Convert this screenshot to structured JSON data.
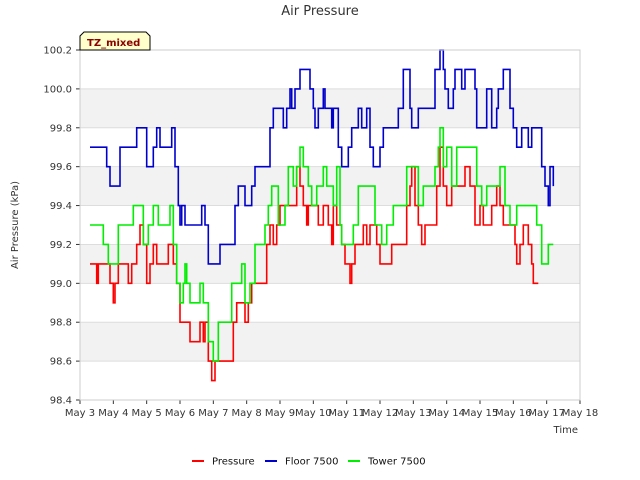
{
  "chart_data": {
    "type": "line",
    "title": "Air Pressure",
    "xlabel": "Time",
    "ylabel": "Air Pressure (kPa)",
    "annotation": "TZ_mixed",
    "xlim": [
      3,
      18
    ],
    "ylim": [
      98.4,
      100.2
    ],
    "x_ticks": [
      3,
      4,
      5,
      6,
      7,
      8,
      9,
      10,
      11,
      12,
      13,
      14,
      15,
      16,
      17,
      18
    ],
    "x_tick_labels": [
      "May 3",
      "May 4",
      "May 5",
      "May 6",
      "May 7",
      "May 8",
      "May 9",
      "May 10",
      "May 11",
      "May 12",
      "May 13",
      "May 14",
      "May 15",
      "May 16",
      "May 17",
      "May 18"
    ],
    "y_ticks": [
      98.4,
      98.6,
      98.8,
      99.0,
      99.2,
      99.4,
      99.6,
      99.8,
      100.0,
      100.2
    ],
    "y_tick_labels": [
      "98.4",
      "98.6",
      "98.8",
      "99.0",
      "99.2",
      "99.4",
      "99.6",
      "99.8",
      "100.0",
      "100.2"
    ],
    "legend_position": "bottom-center",
    "series": [
      {
        "name": "Pressure",
        "color": "#ff0000",
        "points": [
          [
            3.3,
            99.1
          ],
          [
            3.45,
            99.1
          ],
          [
            3.5,
            99.0
          ],
          [
            3.55,
            99.1
          ],
          [
            3.85,
            99.1
          ],
          [
            3.9,
            99.0
          ],
          [
            4.0,
            98.9
          ],
          [
            4.05,
            99.0
          ],
          [
            4.15,
            99.1
          ],
          [
            4.4,
            99.1
          ],
          [
            4.45,
            99.0
          ],
          [
            4.55,
            99.1
          ],
          [
            4.7,
            99.2
          ],
          [
            4.8,
            99.3
          ],
          [
            4.9,
            99.2
          ],
          [
            5.0,
            99.0
          ],
          [
            5.1,
            99.1
          ],
          [
            5.2,
            99.2
          ],
          [
            5.3,
            99.1
          ],
          [
            5.55,
            99.1
          ],
          [
            5.65,
            99.2
          ],
          [
            5.8,
            99.1
          ],
          [
            5.9,
            99.0
          ],
          [
            6.0,
            98.8
          ],
          [
            6.2,
            98.8
          ],
          [
            6.3,
            98.7
          ],
          [
            6.55,
            98.7
          ],
          [
            6.6,
            98.8
          ],
          [
            6.7,
            98.7
          ],
          [
            6.75,
            98.8
          ],
          [
            6.85,
            98.6
          ],
          [
            6.95,
            98.5
          ],
          [
            7.05,
            98.6
          ],
          [
            7.5,
            98.6
          ],
          [
            7.6,
            98.8
          ],
          [
            7.7,
            98.9
          ],
          [
            7.9,
            98.9
          ],
          [
            7.95,
            98.8
          ],
          [
            8.05,
            98.9
          ],
          [
            8.15,
            99.0
          ],
          [
            8.5,
            99.0
          ],
          [
            8.6,
            99.2
          ],
          [
            8.7,
            99.3
          ],
          [
            8.8,
            99.2
          ],
          [
            8.9,
            99.3
          ],
          [
            9.0,
            99.4
          ],
          [
            9.4,
            99.4
          ],
          [
            9.5,
            99.6
          ],
          [
            9.6,
            99.5
          ],
          [
            9.7,
            99.4
          ],
          [
            9.8,
            99.3
          ],
          [
            9.85,
            99.4
          ],
          [
            10.05,
            99.4
          ],
          [
            10.15,
            99.3
          ],
          [
            10.3,
            99.4
          ],
          [
            10.45,
            99.3
          ],
          [
            10.55,
            99.2
          ],
          [
            10.6,
            99.4
          ],
          [
            10.7,
            99.3
          ],
          [
            10.85,
            99.2
          ],
          [
            10.95,
            99.1
          ],
          [
            11.1,
            99.0
          ],
          [
            11.15,
            99.1
          ],
          [
            11.25,
            99.2
          ],
          [
            11.5,
            99.3
          ],
          [
            11.6,
            99.2
          ],
          [
            11.7,
            99.3
          ],
          [
            11.9,
            99.2
          ],
          [
            12.0,
            99.1
          ],
          [
            12.3,
            99.1
          ],
          [
            12.35,
            99.2
          ],
          [
            12.7,
            99.2
          ],
          [
            12.8,
            99.4
          ],
          [
            12.9,
            99.5
          ],
          [
            12.95,
            99.6
          ],
          [
            13.05,
            99.4
          ],
          [
            13.15,
            99.3
          ],
          [
            13.25,
            99.2
          ],
          [
            13.35,
            99.3
          ],
          [
            13.7,
            99.5
          ],
          [
            13.8,
            99.7
          ],
          [
            13.9,
            99.5
          ],
          [
            14.0,
            99.4
          ],
          [
            14.15,
            99.5
          ],
          [
            14.5,
            99.5
          ],
          [
            14.55,
            99.6
          ],
          [
            14.7,
            99.5
          ],
          [
            14.85,
            99.3
          ],
          [
            15.0,
            99.4
          ],
          [
            15.1,
            99.3
          ],
          [
            15.35,
            99.4
          ],
          [
            15.5,
            99.5
          ],
          [
            15.6,
            99.4
          ],
          [
            15.7,
            99.3
          ],
          [
            15.85,
            99.3
          ],
          [
            15.95,
            99.3
          ],
          [
            16.05,
            99.2
          ],
          [
            16.1,
            99.1
          ],
          [
            16.2,
            99.2
          ],
          [
            16.3,
            99.3
          ],
          [
            16.45,
            99.2
          ],
          [
            16.55,
            99.1
          ],
          [
            16.6,
            99.0
          ],
          [
            16.75,
            99.0
          ]
        ]
      },
      {
        "name": "Floor 7500",
        "color": "#0000cc",
        "points": [
          [
            3.3,
            99.7
          ],
          [
            3.7,
            99.7
          ],
          [
            3.8,
            99.6
          ],
          [
            3.9,
            99.5
          ],
          [
            4.05,
            99.5
          ],
          [
            4.2,
            99.7
          ],
          [
            4.6,
            99.7
          ],
          [
            4.7,
            99.8
          ],
          [
            4.9,
            99.8
          ],
          [
            5.0,
            99.6
          ],
          [
            5.2,
            99.7
          ],
          [
            5.3,
            99.8
          ],
          [
            5.4,
            99.7
          ],
          [
            5.7,
            99.7
          ],
          [
            5.75,
            99.8
          ],
          [
            5.85,
            99.6
          ],
          [
            5.95,
            99.4
          ],
          [
            6.0,
            99.3
          ],
          [
            6.05,
            99.4
          ],
          [
            6.15,
            99.3
          ],
          [
            6.6,
            99.3
          ],
          [
            6.65,
            99.4
          ],
          [
            6.75,
            99.3
          ],
          [
            6.85,
            99.1
          ],
          [
            7.1,
            99.1
          ],
          [
            7.2,
            99.2
          ],
          [
            7.5,
            99.2
          ],
          [
            7.65,
            99.4
          ],
          [
            7.75,
            99.5
          ],
          [
            7.9,
            99.5
          ],
          [
            7.95,
            99.4
          ],
          [
            8.15,
            99.5
          ],
          [
            8.25,
            99.6
          ],
          [
            8.6,
            99.6
          ],
          [
            8.7,
            99.8
          ],
          [
            8.8,
            99.9
          ],
          [
            9.05,
            99.9
          ],
          [
            9.1,
            99.8
          ],
          [
            9.2,
            99.9
          ],
          [
            9.3,
            100.0
          ],
          [
            9.35,
            99.9
          ],
          [
            9.45,
            100.0
          ],
          [
            9.6,
            100.1
          ],
          [
            9.85,
            100.1
          ],
          [
            9.9,
            100.0
          ],
          [
            10.0,
            99.9
          ],
          [
            10.05,
            99.8
          ],
          [
            10.15,
            99.9
          ],
          [
            10.3,
            100.0
          ],
          [
            10.35,
            99.9
          ],
          [
            10.55,
            99.8
          ],
          [
            10.6,
            99.9
          ],
          [
            10.75,
            99.7
          ],
          [
            10.85,
            99.6
          ],
          [
            11.05,
            99.7
          ],
          [
            11.15,
            99.8
          ],
          [
            11.35,
            99.9
          ],
          [
            11.45,
            99.8
          ],
          [
            11.6,
            99.9
          ],
          [
            11.7,
            99.7
          ],
          [
            11.8,
            99.6
          ],
          [
            12.0,
            99.7
          ],
          [
            12.1,
            99.8
          ],
          [
            12.5,
            99.8
          ],
          [
            12.55,
            99.9
          ],
          [
            12.7,
            100.1
          ],
          [
            12.85,
            100.1
          ],
          [
            12.9,
            99.9
          ],
          [
            12.95,
            99.8
          ],
          [
            13.15,
            99.9
          ],
          [
            13.55,
            99.9
          ],
          [
            13.65,
            100.1
          ],
          [
            13.8,
            100.2
          ],
          [
            13.9,
            100.1
          ],
          [
            13.95,
            100.0
          ],
          [
            14.05,
            99.9
          ],
          [
            14.2,
            100.0
          ],
          [
            14.25,
            100.1
          ],
          [
            14.45,
            100.0
          ],
          [
            14.55,
            100.1
          ],
          [
            14.75,
            100.1
          ],
          [
            14.85,
            100.0
          ],
          [
            14.9,
            99.8
          ],
          [
            15.15,
            99.8
          ],
          [
            15.2,
            100.0
          ],
          [
            15.35,
            99.8
          ],
          [
            15.5,
            99.9
          ],
          [
            15.55,
            100.0
          ],
          [
            15.7,
            100.1
          ],
          [
            15.85,
            100.1
          ],
          [
            15.9,
            99.9
          ],
          [
            16.0,
            99.8
          ],
          [
            16.1,
            99.7
          ],
          [
            16.25,
            99.8
          ],
          [
            16.45,
            99.7
          ],
          [
            16.55,
            99.8
          ],
          [
            16.75,
            99.8
          ],
          [
            16.85,
            99.6
          ],
          [
            16.95,
            99.5
          ],
          [
            17.05,
            99.4
          ],
          [
            17.1,
            99.6
          ],
          [
            17.2,
            99.5
          ]
        ]
      },
      {
        "name": "Tower 7500",
        "color": "#00ee00",
        "points": [
          [
            3.3,
            99.3
          ],
          [
            3.6,
            99.3
          ],
          [
            3.7,
            99.2
          ],
          [
            3.85,
            99.1
          ],
          [
            4.05,
            99.1
          ],
          [
            4.15,
            99.3
          ],
          [
            4.5,
            99.3
          ],
          [
            4.6,
            99.4
          ],
          [
            4.85,
            99.4
          ],
          [
            4.9,
            99.2
          ],
          [
            5.05,
            99.3
          ],
          [
            5.2,
            99.4
          ],
          [
            5.35,
            99.3
          ],
          [
            5.6,
            99.3
          ],
          [
            5.7,
            99.4
          ],
          [
            5.8,
            99.2
          ],
          [
            5.9,
            99.0
          ],
          [
            6.0,
            98.9
          ],
          [
            6.1,
            99.0
          ],
          [
            6.15,
            99.1
          ],
          [
            6.2,
            99.0
          ],
          [
            6.3,
            98.9
          ],
          [
            6.55,
            98.9
          ],
          [
            6.6,
            99.0
          ],
          [
            6.7,
            98.9
          ],
          [
            6.85,
            98.7
          ],
          [
            7.0,
            98.6
          ],
          [
            7.15,
            98.8
          ],
          [
            7.45,
            98.8
          ],
          [
            7.55,
            99.0
          ],
          [
            7.8,
            99.0
          ],
          [
            7.85,
            99.1
          ],
          [
            7.95,
            98.9
          ],
          [
            8.1,
            99.0
          ],
          [
            8.25,
            99.2
          ],
          [
            8.5,
            99.2
          ],
          [
            8.55,
            99.3
          ],
          [
            8.65,
            99.4
          ],
          [
            8.75,
            99.5
          ],
          [
            8.9,
            99.5
          ],
          [
            8.95,
            99.3
          ],
          [
            9.15,
            99.4
          ],
          [
            9.25,
            99.6
          ],
          [
            9.4,
            99.5
          ],
          [
            9.5,
            99.6
          ],
          [
            9.6,
            99.7
          ],
          [
            9.7,
            99.6
          ],
          [
            9.85,
            99.5
          ],
          [
            9.95,
            99.4
          ],
          [
            10.1,
            99.5
          ],
          [
            10.3,
            99.6
          ],
          [
            10.4,
            99.5
          ],
          [
            10.6,
            99.4
          ],
          [
            10.7,
            99.6
          ],
          [
            10.8,
            99.3
          ],
          [
            10.85,
            99.2
          ],
          [
            11.2,
            99.3
          ],
          [
            11.35,
            99.5
          ],
          [
            11.75,
            99.5
          ],
          [
            11.85,
            99.3
          ],
          [
            12.05,
            99.2
          ],
          [
            12.2,
            99.3
          ],
          [
            12.4,
            99.4
          ],
          [
            12.75,
            99.4
          ],
          [
            12.8,
            99.6
          ],
          [
            13.05,
            99.6
          ],
          [
            13.15,
            99.4
          ],
          [
            13.3,
            99.5
          ],
          [
            13.6,
            99.5
          ],
          [
            13.65,
            99.6
          ],
          [
            13.75,
            99.7
          ],
          [
            13.8,
            99.8
          ],
          [
            13.9,
            99.6
          ],
          [
            14.0,
            99.7
          ],
          [
            14.15,
            99.5
          ],
          [
            14.3,
            99.7
          ],
          [
            14.8,
            99.7
          ],
          [
            14.9,
            99.5
          ],
          [
            15.05,
            99.4
          ],
          [
            15.2,
            99.5
          ],
          [
            15.5,
            99.5
          ],
          [
            15.6,
            99.6
          ],
          [
            15.75,
            99.4
          ],
          [
            15.9,
            99.3
          ],
          [
            16.1,
            99.4
          ],
          [
            16.5,
            99.4
          ],
          [
            16.7,
            99.3
          ],
          [
            16.85,
            99.1
          ],
          [
            17.0,
            99.1
          ],
          [
            17.05,
            99.2
          ],
          [
            17.2,
            99.2
          ]
        ]
      }
    ]
  }
}
